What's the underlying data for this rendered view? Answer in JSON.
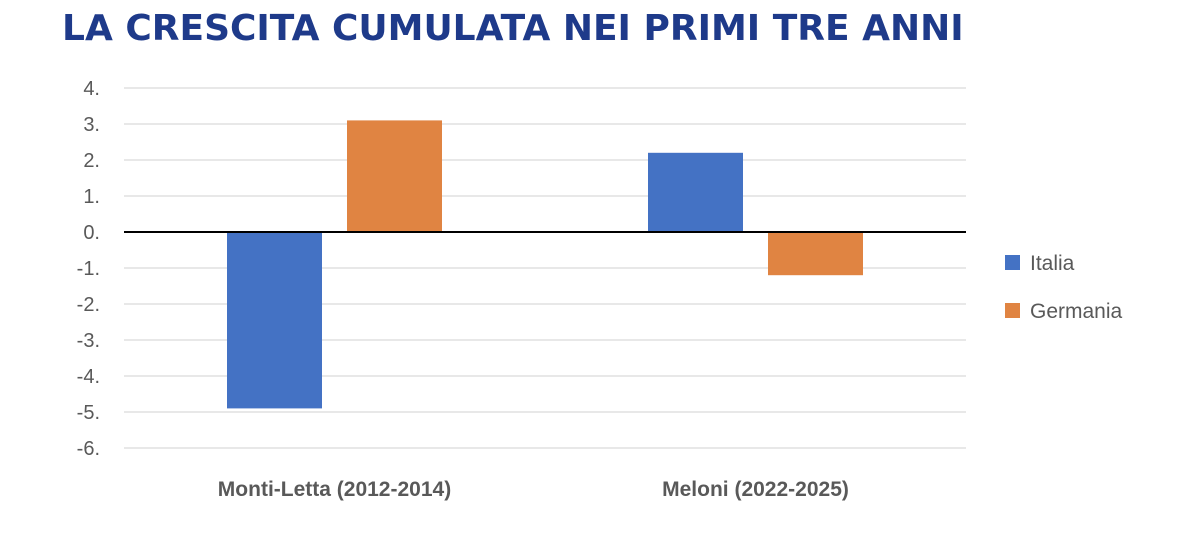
{
  "chart_data": {
    "type": "bar",
    "title": "LA CRESCITA CUMULATA NEI PRIMI TRE ANNI",
    "categories": [
      "Monti-Letta (2012-2014)",
      "Meloni (2022-2025)"
    ],
    "series": [
      {
        "name": "Italia",
        "color": "#4472c4",
        "values": [
          -4.9,
          2.2
        ]
      },
      {
        "name": "Germania",
        "color": "#e08442",
        "values": [
          3.1,
          -1.2
        ]
      }
    ],
    "ylim": [
      -6,
      4
    ],
    "yticks": [
      4,
      3,
      2,
      1,
      0,
      -1,
      -2,
      -3,
      -4,
      -5,
      -6
    ],
    "ytick_labels": [
      "4.",
      "3.",
      "2.",
      "1.",
      "0.",
      "-1.",
      "-2.",
      "-3.",
      "-4.",
      "-5.",
      "-6."
    ],
    "xlabel": "",
    "ylabel": "",
    "grid": true,
    "legend": "right"
  }
}
